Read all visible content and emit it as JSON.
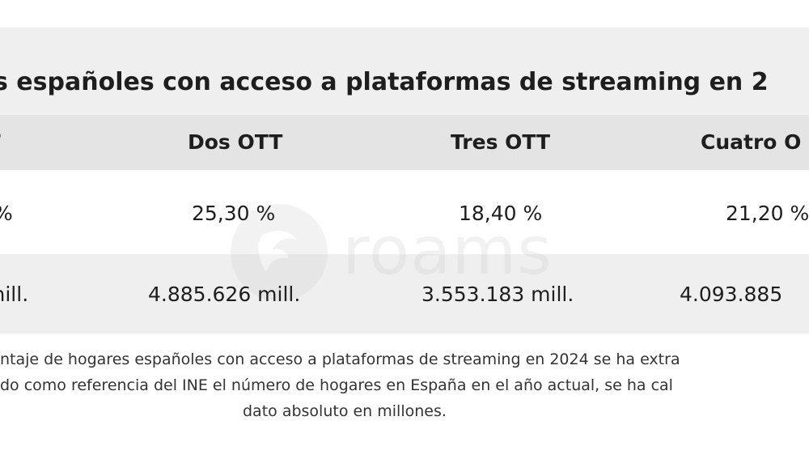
{
  "title": "s españoles con acceso a plataformas de streaming en 2",
  "table": {
    "headers": [
      "TT",
      "Dos OTT",
      "Tres OTT",
      "Cuatro O"
    ],
    "rows": [
      [
        "%",
        "25,30 %",
        "18,40 %",
        "21,20 %"
      ],
      [
        "mill.",
        "4.885.626 mill.",
        "3.553.183 mill.",
        "4.093.885"
      ]
    ]
  },
  "watermark": {
    "text": "roams",
    "icon": "roams-logo-icon"
  },
  "footnote": {
    "line1": "ntaje de hogares españoles con acceso a plataformas de streaming en 2024 se ha extra",
    "line2": "do como referencia del INE el número de hogares en España en el año actual, se ha cal",
    "line3": "dato absoluto en millones."
  },
  "colors": {
    "title_band": "#efefef",
    "header_row": "#e4e4e4",
    "alt_row": "#efefef",
    "text": "#1e1e1e"
  }
}
